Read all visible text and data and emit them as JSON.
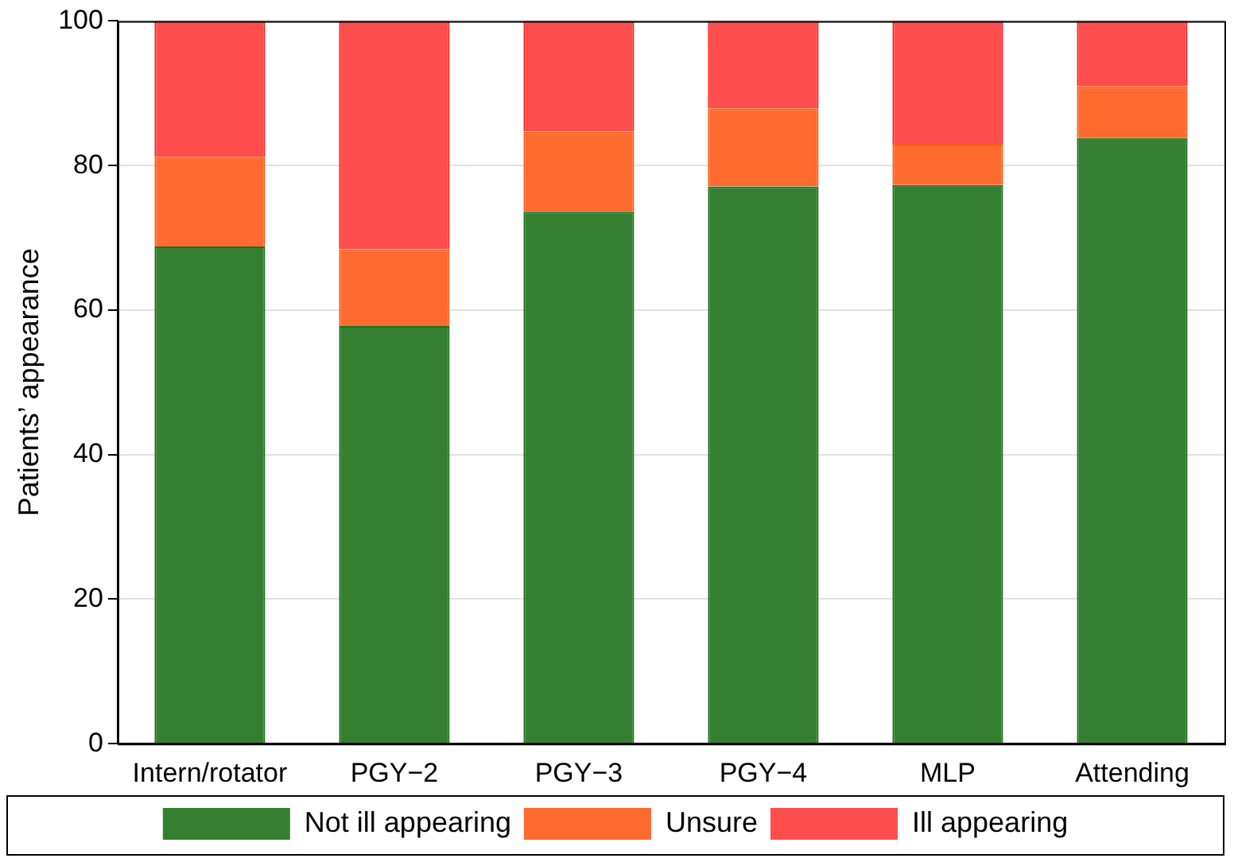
{
  "chart_data": {
    "type": "bar",
    "stacked": true,
    "ylabel": "Patients’ appearance",
    "categories": [
      "Intern/rotator",
      "PGY−2",
      "PGY−3",
      "PGY−4",
      "MLP",
      "Attending"
    ],
    "series": [
      {
        "name": "Not ill appearing",
        "color": "#357f31",
        "values": [
          68.8,
          57.8,
          73.6,
          77.1,
          77.3,
          83.8
        ]
      },
      {
        "name": "Unsure",
        "color": "#ff6a2e",
        "values": [
          12.4,
          10.6,
          11.1,
          10.8,
          5.7,
          7.2
        ]
      },
      {
        "name": "Ill appearing",
        "color": "#ff4d4d",
        "values": [
          18.8,
          31.6,
          15.3,
          12.1,
          17.0,
          9.0
        ]
      }
    ],
    "ylim": [
      0,
      100
    ],
    "yticks": [
      0,
      20,
      40,
      60,
      80,
      100
    ],
    "grid": "y",
    "legend": "bottom"
  }
}
